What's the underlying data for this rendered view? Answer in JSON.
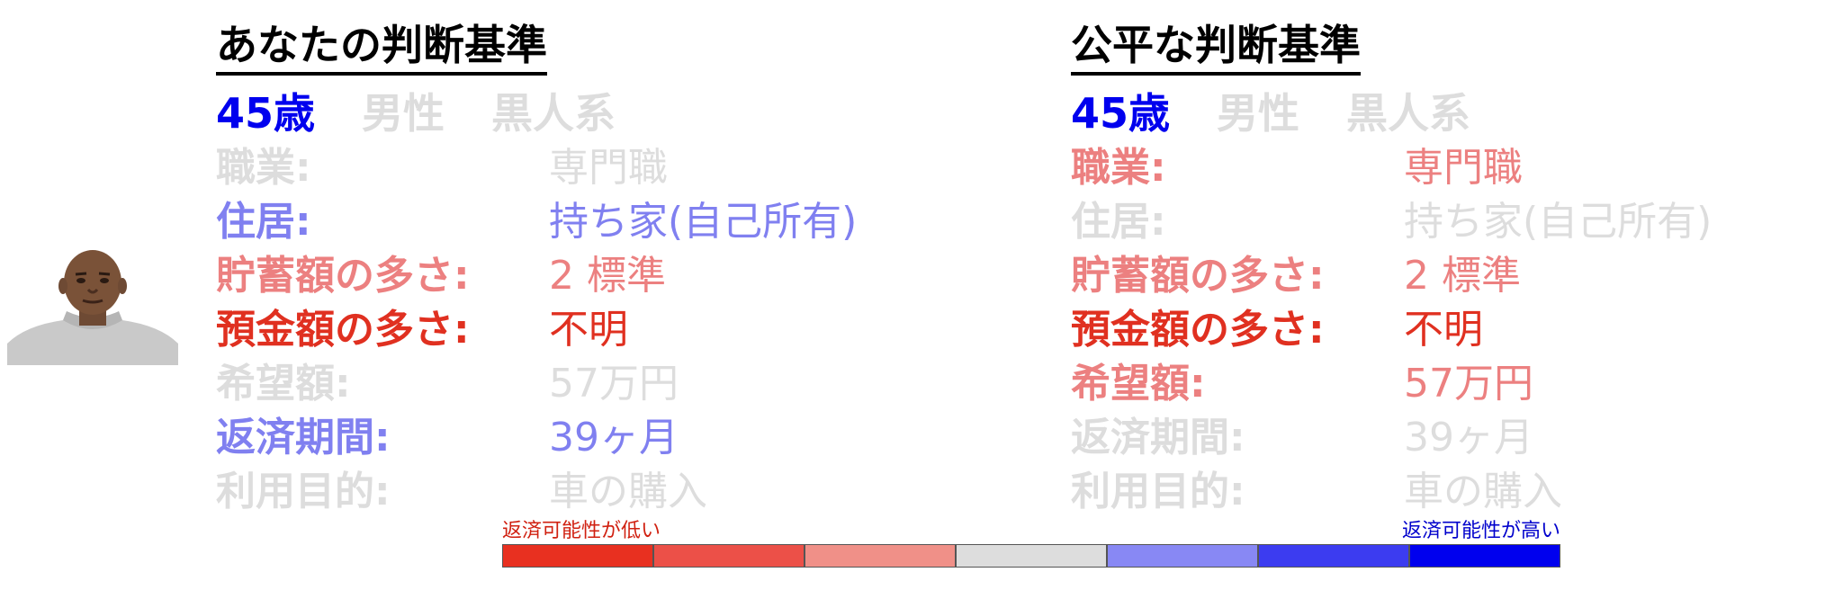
{
  "colors": {
    "blue_strong": "#0000ee",
    "blue_mid": "#8080f0",
    "red_strong": "#e03020",
    "red_mid": "#ec8080",
    "gray": "#dddddd",
    "black": "#000000"
  },
  "panels": [
    {
      "title": "あなたの判断基準",
      "demographics": [
        {
          "text": "45歳",
          "color": "#0000ee"
        },
        {
          "text": "男性",
          "color": "#dddddd"
        },
        {
          "text": "黒人系",
          "color": "#dddddd"
        }
      ],
      "attributes": [
        {
          "label": "職業:",
          "value": "専門職",
          "color": "#dddddd"
        },
        {
          "label": "住居:",
          "value": "持ち家(自己所有)",
          "color": "#8080f0"
        },
        {
          "label": "貯蓄額の多さ:",
          "value": "2 標準",
          "color": "#ec8080"
        },
        {
          "label": "預金額の多さ:",
          "value": "不明",
          "color": "#e03020"
        },
        {
          "label": "希望額:",
          "value": "57万円",
          "color": "#dddddd"
        },
        {
          "label": "返済期間:",
          "value": "39ヶ月",
          "color": "#8080f0"
        },
        {
          "label": "利用目的:",
          "value": "車の購入",
          "color": "#dddddd"
        }
      ]
    },
    {
      "title": "公平な判断基準",
      "demographics": [
        {
          "text": "45歳",
          "color": "#0000ee"
        },
        {
          "text": "男性",
          "color": "#dddddd"
        },
        {
          "text": "黒人系",
          "color": "#dddddd"
        }
      ],
      "attributes": [
        {
          "label": "職業:",
          "value": "専門職",
          "color": "#ec8080"
        },
        {
          "label": "住居:",
          "value": "持ち家(自己所有)",
          "color": "#dddddd"
        },
        {
          "label": "貯蓄額の多さ:",
          "value": "2 標準",
          "color": "#ec8080"
        },
        {
          "label": "預金額の多さ:",
          "value": "不明",
          "color": "#e03020"
        },
        {
          "label": "希望額:",
          "value": "57万円",
          "color": "#ec8080"
        },
        {
          "label": "返済期間:",
          "value": "39ヶ月",
          "color": "#dddddd"
        },
        {
          "label": "利用目的:",
          "value": "車の購入",
          "color": "#dddddd"
        }
      ]
    }
  ],
  "scale": {
    "low_label": "返済可能性が低い",
    "high_label": "返済可能性が高い",
    "low_color": "#d02010",
    "high_color": "#0000cc",
    "segments": [
      "#e83020",
      "#ec5048",
      "#f09088",
      "#dddddd",
      "#8888f4",
      "#3c3cf0",
      "#0000ee"
    ]
  }
}
